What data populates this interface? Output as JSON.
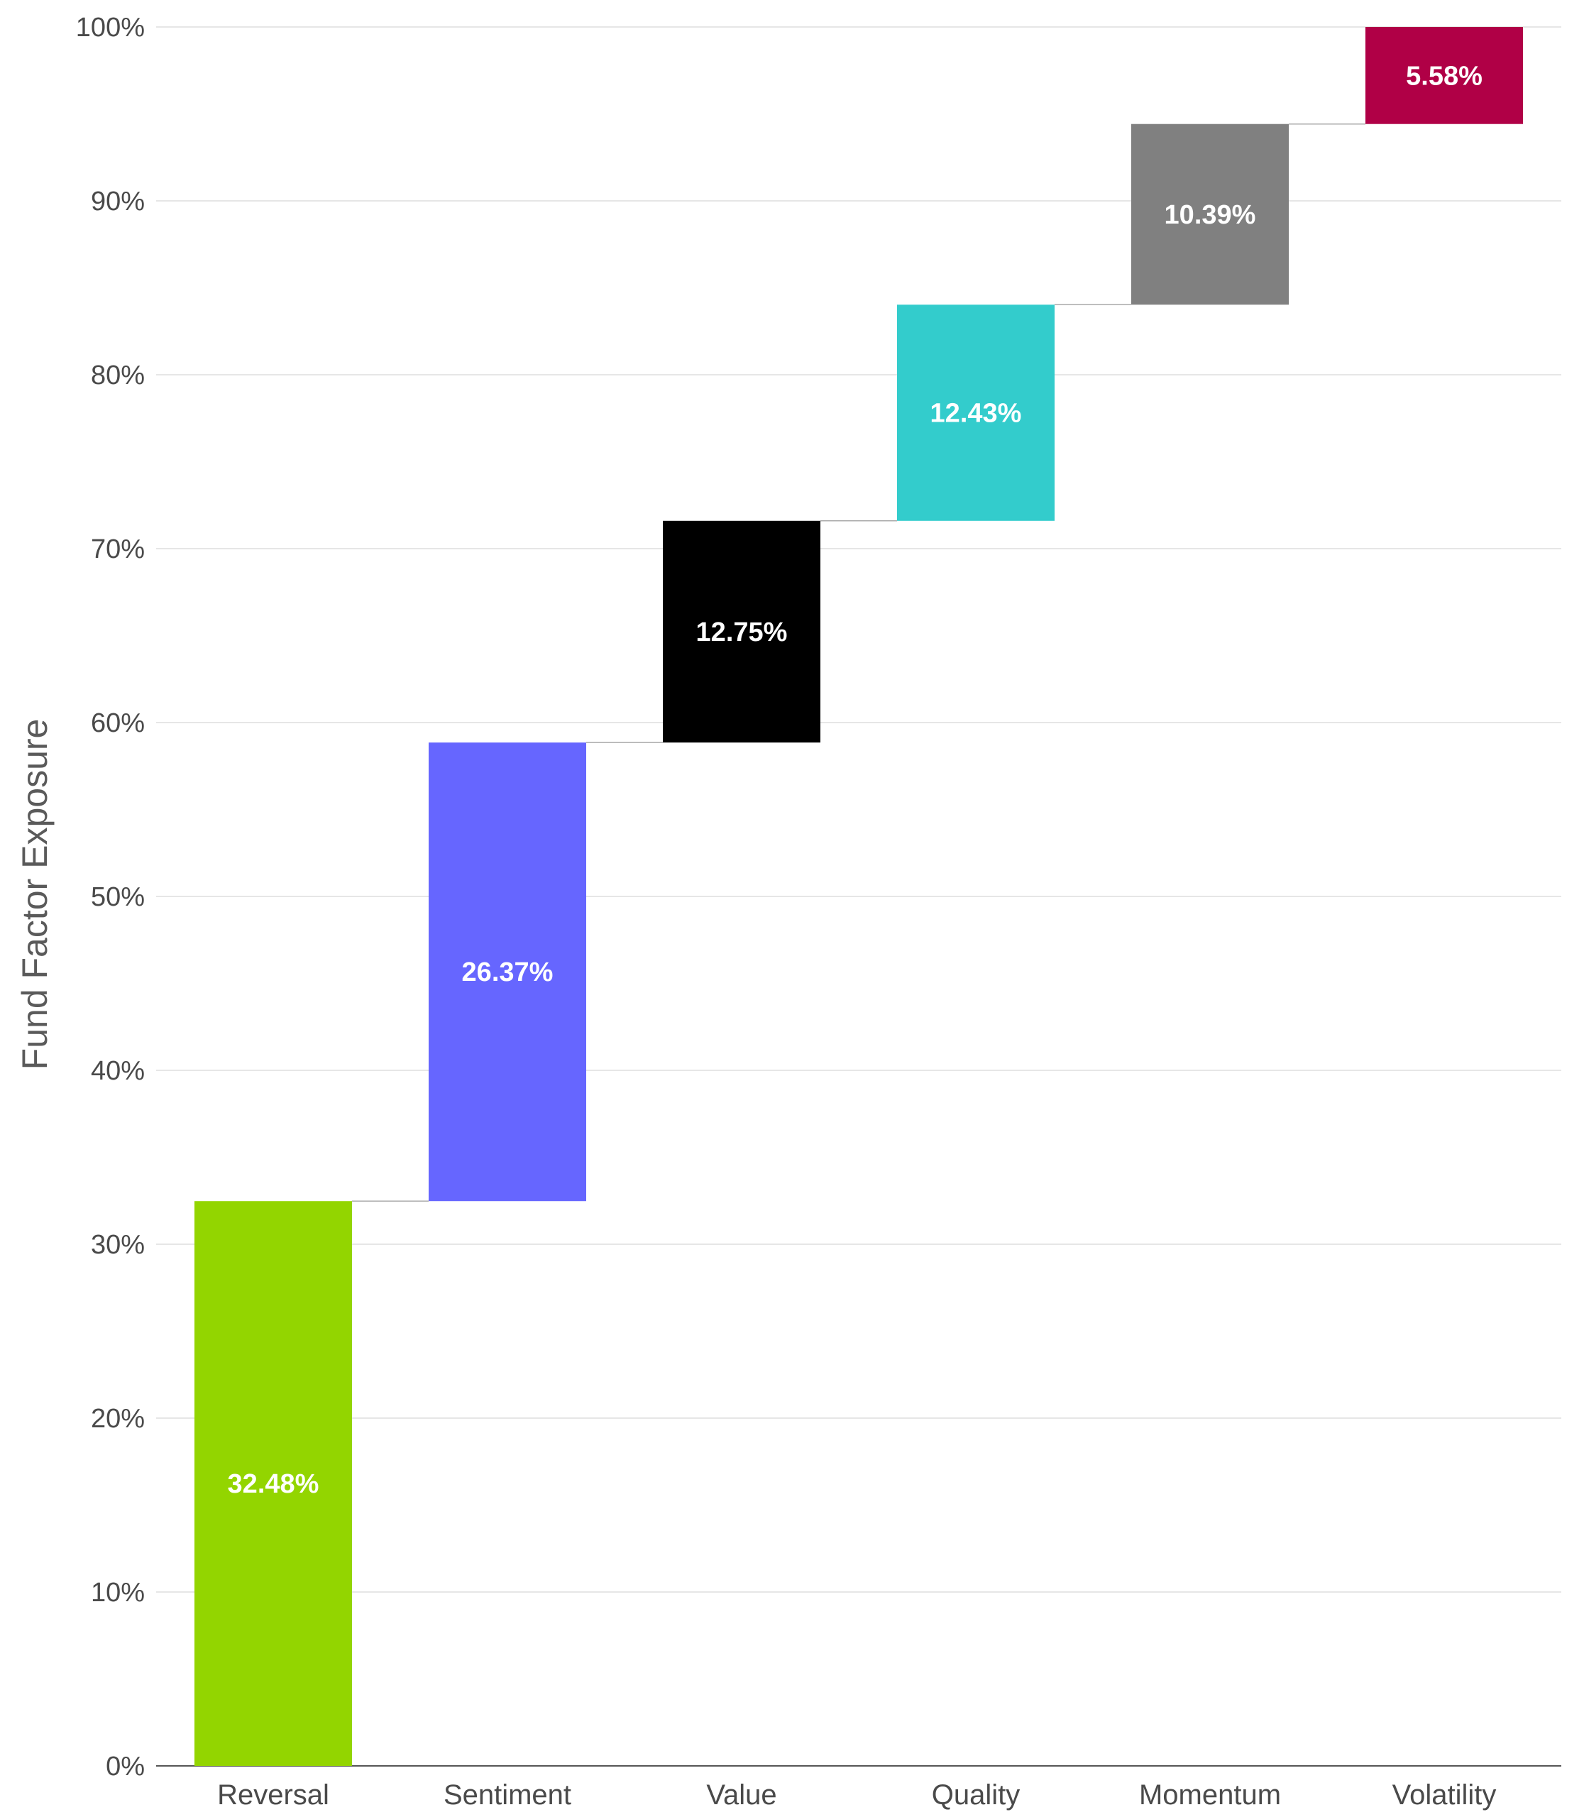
{
  "chart_data": {
    "type": "bar",
    "subtype": "waterfall",
    "title": "",
    "xlabel": "",
    "ylabel": "Fund Factor Exposure",
    "ylim": [
      0,
      100
    ],
    "grid": true,
    "legend": "none",
    "y_ticks": [
      0,
      10,
      20,
      30,
      40,
      50,
      60,
      70,
      80,
      90,
      100
    ],
    "y_tick_labels": [
      "0%",
      "10%",
      "20%",
      "30%",
      "40%",
      "50%",
      "60%",
      "70%",
      "80%",
      "90%",
      "100%"
    ],
    "categories": [
      "Reversal",
      "Sentiment",
      "Value",
      "Quality",
      "Momentum",
      "Volatility"
    ],
    "values": [
      32.48,
      26.37,
      12.75,
      12.43,
      10.39,
      5.58
    ],
    "data_labels": [
      "32.48%",
      "26.37%",
      "12.75%",
      "12.43%",
      "10.39%",
      "5.58%"
    ],
    "colors": [
      "#93d500",
      "#6666ff",
      "#000000",
      "#33cccc",
      "#808080",
      "#b00046"
    ],
    "gridline_color": "#dddddd",
    "connector_color": "#aaaaaa"
  }
}
